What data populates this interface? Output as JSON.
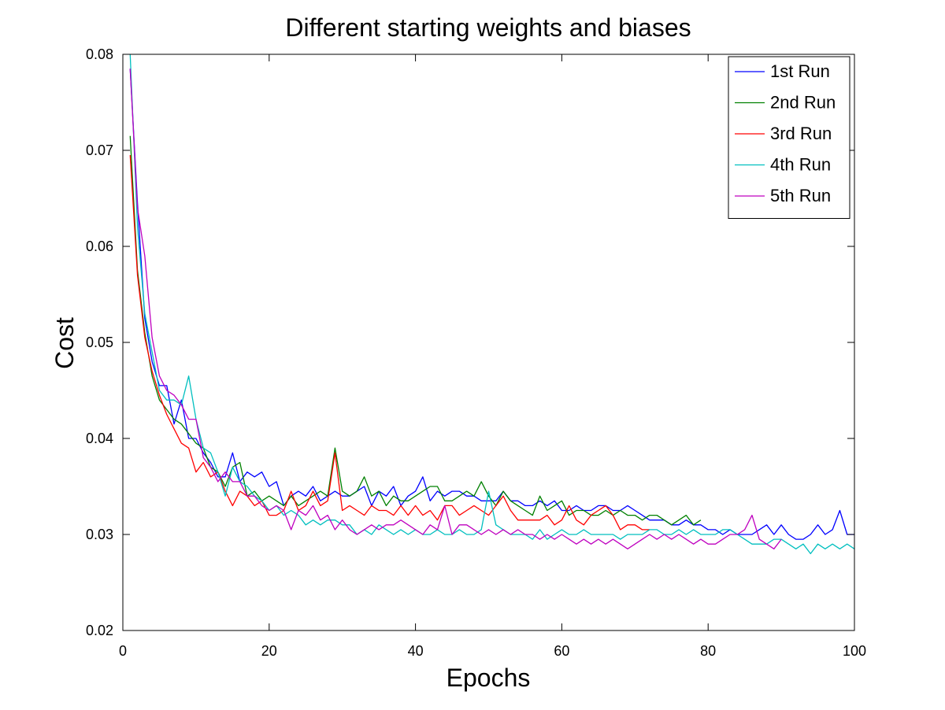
{
  "chart_data": {
    "type": "line",
    "title": "Different starting weights and biases",
    "xlabel": "Epochs",
    "ylabel": "Cost",
    "xlim": [
      0,
      100
    ],
    "ylim": [
      0.02,
      0.08
    ],
    "xticks": [
      "0",
      "20",
      "40",
      "60",
      "80",
      "100"
    ],
    "yticks": [
      "0.02",
      "0.03",
      "0.04",
      "0.05",
      "0.06",
      "0.07",
      "0.08"
    ],
    "grid": false,
    "legend_position": "top-right",
    "series": [
      {
        "name": "1st Run",
        "color": "#0000ff",
        "x_start": 1,
        "values": [
          0.0785,
          0.0645,
          0.0525,
          0.048,
          0.0455,
          0.0455,
          0.0415,
          0.044,
          0.04,
          0.04,
          0.0385,
          0.0375,
          0.036,
          0.036,
          0.0385,
          0.0355,
          0.0365,
          0.036,
          0.0365,
          0.035,
          0.0355,
          0.033,
          0.034,
          0.0345,
          0.034,
          0.035,
          0.0335,
          0.034,
          0.0345,
          0.034,
          0.034,
          0.0345,
          0.035,
          0.033,
          0.0345,
          0.034,
          0.035,
          0.033,
          0.034,
          0.0345,
          0.036,
          0.0335,
          0.0345,
          0.034,
          0.0345,
          0.0345,
          0.034,
          0.034,
          0.0335,
          0.0335,
          0.0335,
          0.0345,
          0.0335,
          0.0335,
          0.033,
          0.033,
          0.0335,
          0.033,
          0.0335,
          0.0325,
          0.0325,
          0.033,
          0.0325,
          0.0325,
          0.033,
          0.033,
          0.0325,
          0.0325,
          0.033,
          0.0325,
          0.032,
          0.0315,
          0.0315,
          0.0315,
          0.031,
          0.031,
          0.0315,
          0.031,
          0.031,
          0.0305,
          0.0305,
          0.03,
          0.0305,
          0.03,
          0.03,
          0.03,
          0.0305,
          0.031,
          0.03,
          0.031,
          0.03,
          0.0295,
          0.0295,
          0.03,
          0.031,
          0.03,
          0.0305,
          0.0325,
          0.03,
          0.03
        ]
      },
      {
        "name": "2nd Run",
        "color": "#008000",
        "x_start": 1,
        "values": [
          0.0715,
          0.0575,
          0.051,
          0.0465,
          0.044,
          0.043,
          0.042,
          0.0415,
          0.0405,
          0.0395,
          0.039,
          0.037,
          0.0365,
          0.035,
          0.037,
          0.0375,
          0.034,
          0.0345,
          0.0335,
          0.034,
          0.0335,
          0.033,
          0.034,
          0.033,
          0.0335,
          0.034,
          0.0345,
          0.034,
          0.039,
          0.0345,
          0.034,
          0.0345,
          0.036,
          0.034,
          0.0345,
          0.033,
          0.034,
          0.0335,
          0.0335,
          0.034,
          0.0345,
          0.035,
          0.035,
          0.0335,
          0.0335,
          0.034,
          0.0345,
          0.034,
          0.0355,
          0.034,
          0.033,
          0.0345,
          0.0335,
          0.033,
          0.0325,
          0.032,
          0.034,
          0.0325,
          0.033,
          0.0335,
          0.032,
          0.0325,
          0.0325,
          0.032,
          0.032,
          0.0325,
          0.032,
          0.0325,
          0.032,
          0.032,
          0.0315,
          0.032,
          0.032,
          0.0315,
          0.031,
          0.0315,
          0.032,
          0.031,
          0.0315
        ]
      },
      {
        "name": "3rd Run",
        "color": "#ff0000",
        "x_start": 1,
        "values": [
          0.0695,
          0.057,
          0.0505,
          0.047,
          0.0445,
          0.0425,
          0.041,
          0.0395,
          0.039,
          0.0365,
          0.0375,
          0.036,
          0.0365,
          0.0345,
          0.033,
          0.0345,
          0.034,
          0.033,
          0.0335,
          0.032,
          0.032,
          0.0325,
          0.0345,
          0.0325,
          0.033,
          0.0345,
          0.033,
          0.0335,
          0.0385,
          0.0325,
          0.033,
          0.0325,
          0.032,
          0.033,
          0.0325,
          0.0325,
          0.032,
          0.033,
          0.032,
          0.033,
          0.032,
          0.0325,
          0.0315,
          0.033,
          0.033,
          0.032,
          0.0325,
          0.033,
          0.0325,
          0.032,
          0.033,
          0.034,
          0.0325,
          0.0315,
          0.0315,
          0.0315,
          0.0315,
          0.032,
          0.031,
          0.0315,
          0.033,
          0.0315,
          0.031,
          0.032,
          0.0325,
          0.033,
          0.032,
          0.0305,
          0.031,
          0.031,
          0.0305,
          0.0305
        ]
      },
      {
        "name": "4th Run",
        "color": "#00bfbf",
        "x_start": 1,
        "values": [
          0.08,
          0.062,
          0.053,
          0.049,
          0.045,
          0.044,
          0.044,
          0.0435,
          0.0465,
          0.042,
          0.039,
          0.0385,
          0.0365,
          0.034,
          0.037,
          0.0355,
          0.035,
          0.034,
          0.0335,
          0.0325,
          0.033,
          0.032,
          0.0325,
          0.032,
          0.031,
          0.0315,
          0.031,
          0.0315,
          0.0315,
          0.031,
          0.031,
          0.03,
          0.0305,
          0.03,
          0.031,
          0.0305,
          0.03,
          0.0305,
          0.03,
          0.0305,
          0.03,
          0.03,
          0.0305,
          0.03,
          0.03,
          0.0305,
          0.03,
          0.03,
          0.0305,
          0.0345,
          0.031,
          0.0305,
          0.03,
          0.03,
          0.03,
          0.0295,
          0.0305,
          0.0295,
          0.03,
          0.0305,
          0.03,
          0.03,
          0.0305,
          0.03,
          0.03,
          0.03,
          0.03,
          0.0295,
          0.03,
          0.03,
          0.03,
          0.0305,
          0.0305,
          0.03,
          0.03,
          0.0305,
          0.03,
          0.0305,
          0.03,
          0.03,
          0.03,
          0.0305,
          0.0305,
          0.03,
          0.0295,
          0.029,
          0.029,
          0.029,
          0.0295,
          0.0295,
          0.029,
          0.0285,
          0.029,
          0.028,
          0.029,
          0.0285,
          0.029,
          0.0285,
          0.029,
          0.0285
        ]
      },
      {
        "name": "5th Run",
        "color": "#bf00bf",
        "x_start": 1,
        "values": [
          0.0785,
          0.064,
          0.059,
          0.0505,
          0.0465,
          0.045,
          0.0445,
          0.0435,
          0.042,
          0.042,
          0.038,
          0.037,
          0.0355,
          0.0365,
          0.0355,
          0.0355,
          0.034,
          0.034,
          0.033,
          0.0325,
          0.033,
          0.0325,
          0.0305,
          0.0325,
          0.032,
          0.033,
          0.0315,
          0.032,
          0.0305,
          0.0315,
          0.0305,
          0.03,
          0.0305,
          0.031,
          0.0305,
          0.031,
          0.031,
          0.0315,
          0.031,
          0.0305,
          0.03,
          0.031,
          0.0305,
          0.033,
          0.03,
          0.031,
          0.031,
          0.0305,
          0.03,
          0.0305,
          0.03,
          0.0305,
          0.03,
          0.0305,
          0.03,
          0.03,
          0.0295,
          0.03,
          0.0295,
          0.03,
          0.0295,
          0.029,
          0.0295,
          0.029,
          0.0295,
          0.029,
          0.0295,
          0.029,
          0.0285,
          0.029,
          0.0295,
          0.03,
          0.0295,
          0.03,
          0.0295,
          0.03,
          0.0295,
          0.029,
          0.0295,
          0.029,
          0.029,
          0.0295,
          0.03,
          0.03,
          0.0305,
          0.032,
          0.0295,
          0.029,
          0.0285,
          0.0295
        ]
      }
    ]
  }
}
